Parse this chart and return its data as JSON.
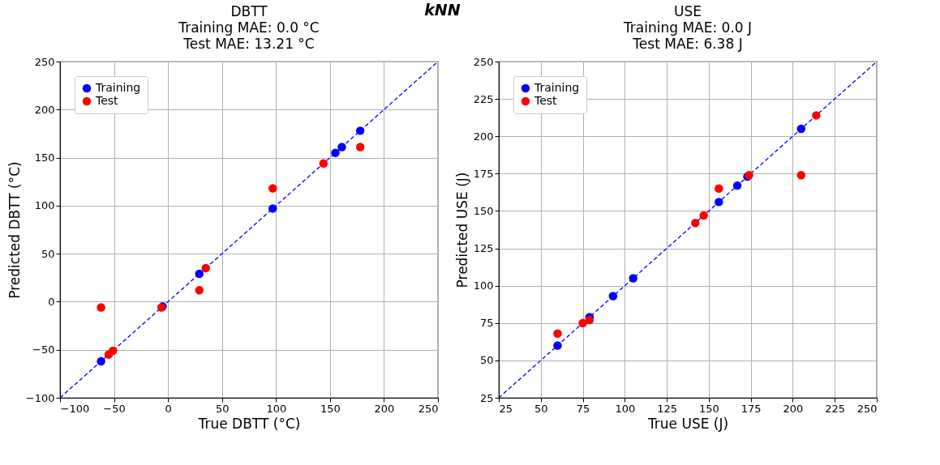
{
  "chart_data": [
    {
      "type": "scatter",
      "title": "DBTT\nTraining MAE: 0.0 °C\nTest MAE:  13.21 °C",
      "annotations": [
        "kNN"
      ],
      "xlabel": "True DBTT (°C)",
      "ylabel": "Predicted DBTT (°C)",
      "xlim": [
        -100,
        250
      ],
      "ylim": [
        -100,
        250
      ],
      "xticks": [
        -100,
        -50,
        0,
        50,
        100,
        150,
        200,
        250
      ],
      "yticks": [
        -100,
        -50,
        0,
        50,
        100,
        150,
        200,
        250
      ],
      "grid": true,
      "legend": "top left",
      "marker": "circle",
      "series": [
        {
          "type": "line",
          "color": "#0000ff",
          "line_style": "dashed",
          "marker": "none",
          "x": [
            -100,
            250
          ],
          "values": [
            -100,
            250
          ]
        },
        {
          "name": "Training",
          "color": "#0000ff",
          "x": [
            -62,
            -5,
            29,
            97,
            155,
            161,
            178
          ],
          "values": [
            -62,
            -5,
            29,
            97,
            155,
            161,
            178
          ]
        },
        {
          "name": "Test",
          "color": "#ff0000",
          "x": [
            -62,
            -55,
            -51,
            -6,
            29,
            35,
            97,
            144,
            178
          ],
          "values": [
            -6,
            -55,
            -51,
            -6,
            12,
            35,
            118,
            144,
            161
          ]
        }
      ]
    },
    {
      "type": "scatter",
      "title": "USE\nTraining MAE: 0.0 J\nTest MAE:  6.38 J",
      "xlabel": "True USE (J)",
      "ylabel": "Predicted USE (J)",
      "xlim": [
        25,
        250
      ],
      "ylim": [
        25,
        250
      ],
      "xticks": [
        25,
        50,
        75,
        100,
        125,
        150,
        175,
        200,
        225,
        250
      ],
      "yticks": [
        25,
        50,
        75,
        100,
        125,
        150,
        175,
        200,
        225,
        250
      ],
      "grid": true,
      "legend": "top left",
      "marker": "circle",
      "series": [
        {
          "type": "line",
          "color": "#0000ff",
          "line_style": "dashed",
          "marker": "none",
          "x": [
            25,
            250
          ],
          "values": [
            25,
            250
          ]
        },
        {
          "name": "Training",
          "color": "#0000ff",
          "x": [
            60,
            79,
            93,
            105,
            156,
            167,
            173,
            205
          ],
          "values": [
            60,
            79,
            93,
            105,
            156,
            167,
            173,
            205
          ]
        },
        {
          "name": "Test",
          "color": "#ff0000",
          "x": [
            60,
            75,
            79,
            142,
            147,
            156,
            174,
            205,
            214
          ],
          "values": [
            68,
            75,
            77,
            142,
            147,
            165,
            174,
            174,
            214
          ]
        }
      ]
    }
  ]
}
